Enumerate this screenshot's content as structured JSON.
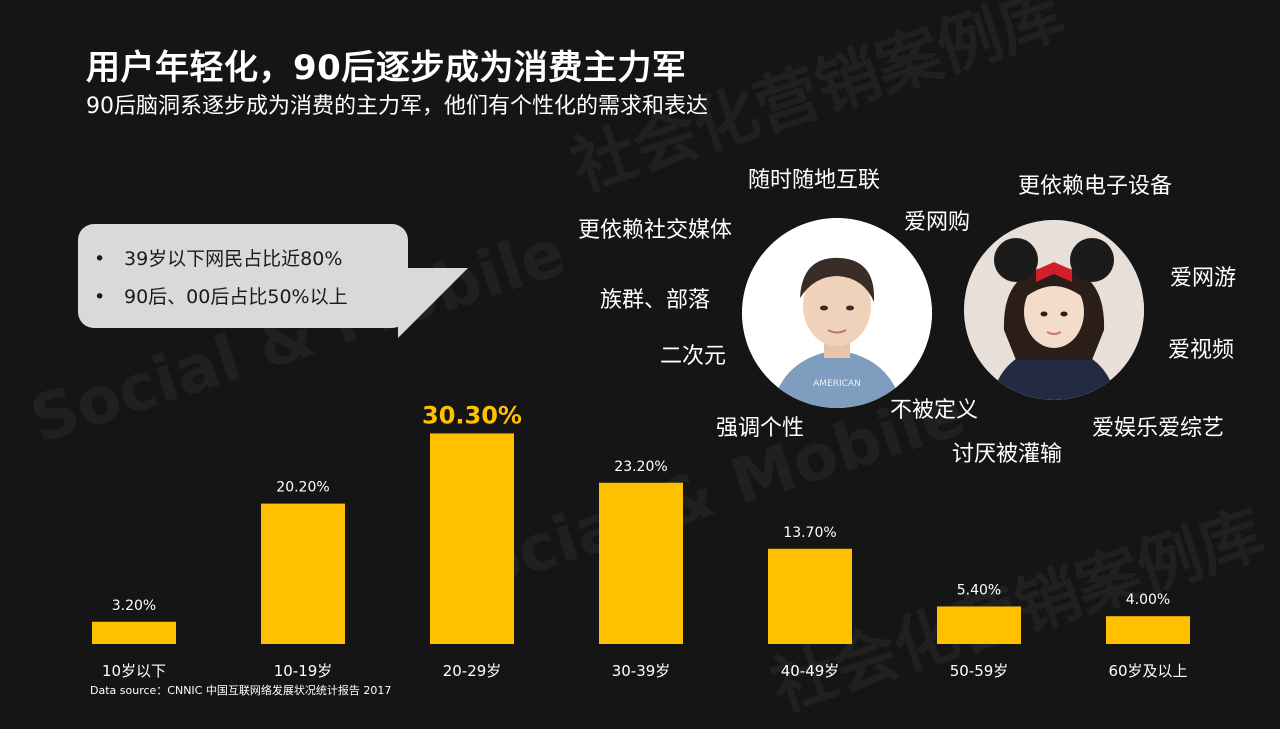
{
  "title": "用户年轻化，90后逐步成为消费主力军",
  "subtitle": "90后脑洞系逐步成为消费的主力军，他们有个性化的需求和表达",
  "callout": {
    "bullets": [
      "39岁以下网民占比近80%",
      "90后、00后占比50%以上"
    ]
  },
  "tags": {
    "t1": "随时随地互联",
    "t2": "更依赖社交媒体",
    "t3": "爱网购",
    "t4": "族群、部落",
    "t5": "二次元",
    "t6": "强调个性",
    "t7": "不被定义",
    "t8": "讨厌被灌输",
    "t9": "更依赖电子设备",
    "t10": "爱网游",
    "t11": "爱视频",
    "t12": "爱娱乐爱综艺"
  },
  "avatar_icons": [
    "male-avatar-icon",
    "female-avatar-icon"
  ],
  "watermark": "社会化营销案例库",
  "watermark_en": "Social & Mobile",
  "colors": {
    "background": "#151515",
    "bar": "#FFC000",
    "highlight_label": "#FFC000",
    "text": "#ffffff"
  },
  "chart_data": {
    "type": "bar",
    "categories": [
      "10岁以下",
      "10-19岁",
      "20-29岁",
      "30-39岁",
      "40-49岁",
      "50-59岁",
      "60岁及以上"
    ],
    "values": [
      3.2,
      20.2,
      30.3,
      23.2,
      13.7,
      5.4,
      4.0
    ],
    "data_labels": [
      "3.20%",
      "20.20%",
      "30.30%",
      "23.20%",
      "13.70%",
      "5.40%",
      "4.00%"
    ],
    "highlight_index": 2,
    "ylim": [
      0,
      35
    ],
    "grid": false,
    "legend": "none"
  },
  "source": "Data source：CNNIC 中国互联网络发展状况统计报告 2017"
}
